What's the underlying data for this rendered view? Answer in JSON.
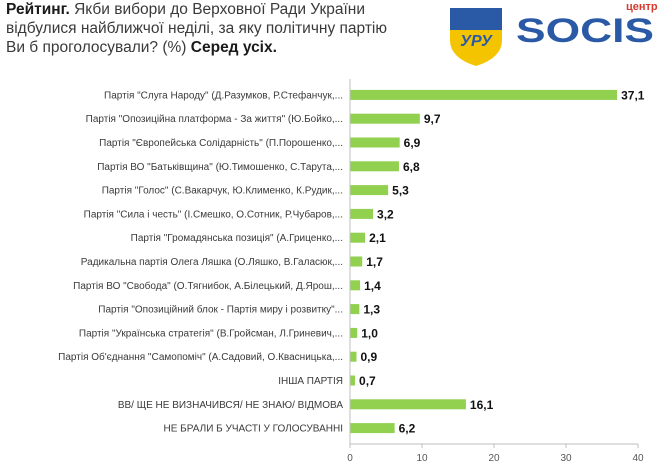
{
  "header": {
    "title_bold": "Рейтинг.",
    "title_text": "Якби вибори до Верховної Ради України відбулися найближчої неділі, за яку політичну партію Ви б проголосували? (%)",
    "title_tail": "Серед усіх."
  },
  "logos": {
    "left_logo_text": "УРУ",
    "brand_prefix": "центр",
    "brand_name": "SOCIS",
    "colors": {
      "blue": "#2a5aa6",
      "yellow": "#f5c400",
      "red": "#d63a2e"
    }
  },
  "chart_data": {
    "type": "bar",
    "orientation": "horizontal",
    "categories": [
      "Партія \"Слуга Народу\" (Д.Разумков, Р.Стефанчук,...",
      "Партія \"Опозиційна платформа - За життя\" (Ю.Бойко,...",
      "Партія \"Європейська Солідарність\" (П.Порошенко,...",
      "Партія ВО \"Батьківщина\" (Ю.Тимошенко, С.Тарута,...",
      "Партія \"Голос\" (С.Вакарчук, Ю.Клименко, К.Рудик,...",
      "Партія \"Сила і честь\" (І.Смешко, О.Сотник, Р.Чубаров,...",
      "Партія \"Громадянська позиція\" (А.Гриценко,...",
      "Радикальна партія Олега Ляшка (О.Ляшко, В.Галасюк,...",
      "Партія ВО \"Свобода\" (О.Тягнибок, А.Білецький, Д.Ярош,...",
      "Партія \"Опозиційний блок - Партія миру і розвитку\"...",
      "Партія \"Українська стратегія\" (В.Гройсман, Л.Гриневич,...",
      "Партія Об'єднання \"Самопоміч\" (А.Садовий, О.Квасницька,...",
      "ІНША ПАРТІЯ",
      "ВВ/ ЩЕ НЕ ВИЗНАЧИВСЯ/ НЕ ЗНАЮ/ ВІДМОВА",
      "НЕ БРАЛИ Б УЧАСТІ У ГОЛОСУВАННІ"
    ],
    "value_labels": [
      "37,1",
      "9,7",
      "6,9",
      "6,8",
      "5,3",
      "3,2",
      "2,1",
      "1,7",
      "1,4",
      "1,3",
      "1,0",
      "0,9",
      "0,7",
      "16,1",
      "6,2"
    ],
    "values": [
      37.1,
      9.7,
      6.9,
      6.8,
      5.3,
      3.2,
      2.1,
      1.7,
      1.4,
      1.3,
      1.0,
      0.9,
      0.7,
      16.1,
      6.2
    ],
    "xlim": [
      0,
      40
    ],
    "xticks": [
      0,
      10,
      20,
      30,
      40
    ],
    "bar_color": "#92d050",
    "grid": false
  }
}
